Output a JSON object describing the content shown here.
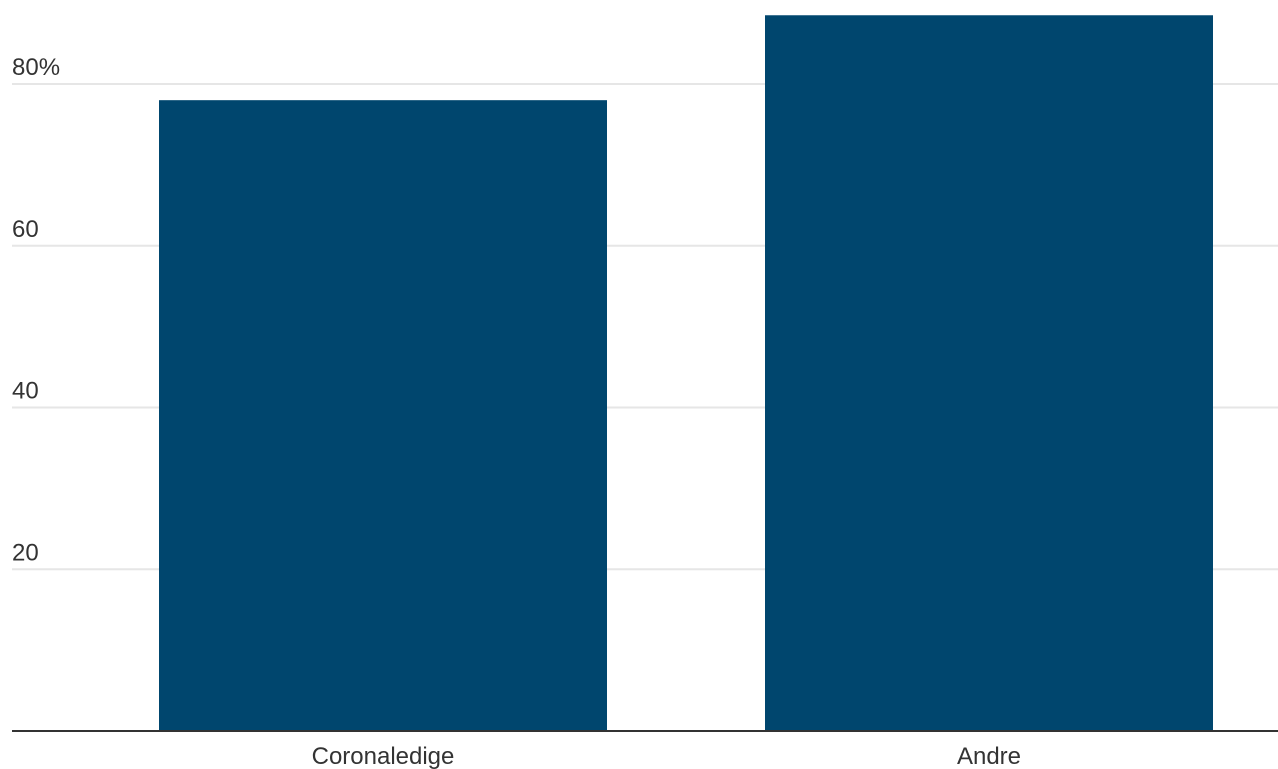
{
  "chart_data": {
    "type": "bar",
    "categories": [
      "Coronaledige",
      "Andre"
    ],
    "values": [
      78,
      88.5
    ],
    "ylim": [
      0,
      88.5
    ],
    "y_ticks": [
      20,
      40,
      60,
      80
    ],
    "y_tick_labels": [
      "20",
      "40",
      "60",
      "80%"
    ],
    "grid": true,
    "title": "",
    "xlabel": "",
    "ylabel": ""
  },
  "colors": {
    "bar": "#00466e",
    "grid": "#e6e6e6",
    "axis": "#333333",
    "text": "#333333"
  }
}
